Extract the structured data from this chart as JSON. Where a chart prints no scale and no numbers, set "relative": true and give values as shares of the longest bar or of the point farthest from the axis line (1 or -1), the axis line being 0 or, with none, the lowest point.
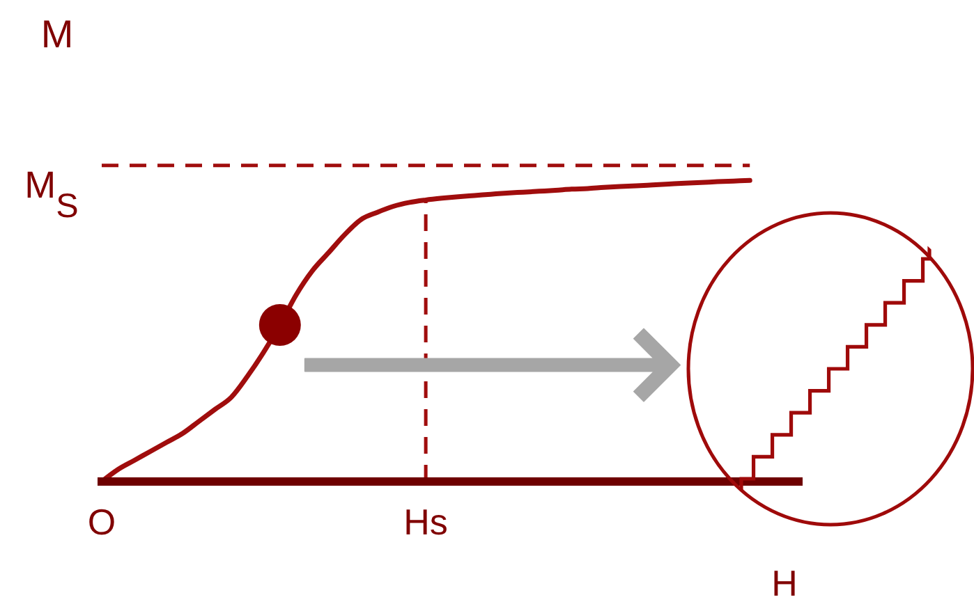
{
  "chart_data": {
    "type": "line",
    "relative": true,
    "xlabel": "H",
    "ylabel": "M",
    "categories": [
      "O",
      null,
      null,
      null,
      null,
      null,
      null,
      null,
      null,
      null,
      null,
      null,
      null,
      null,
      null,
      null,
      null,
      null,
      null,
      null,
      "Hs",
      null,
      null,
      null,
      null,
      null,
      null,
      null,
      null,
      null,
      null,
      null,
      null,
      null,
      null,
      null,
      null,
      null,
      null,
      null,
      null,
      null,
      null,
      null
    ],
    "series": [
      {
        "color": "#a00d0d",
        "values": [
          0,
          0.04,
          0.07,
          0.1,
          0.13,
          0.16,
          0.2,
          0.24,
          0.28,
          0.35,
          0.43,
          0.52,
          0.62,
          0.7,
          0.76,
          0.82,
          0.87,
          0.894,
          0.914,
          0.927,
          0.935,
          0.941,
          0.946,
          0.95,
          0.954,
          0.958,
          0.961,
          0.964,
          0.967,
          0.971,
          0.973,
          0.977,
          0.98,
          0.982,
          0.985,
          0.988,
          0.991,
          0.993,
          0.996,
          0.998,
          1,
          null,
          null,
          null
        ]
      },
      {
        "type": "scatter",
        "color": "#8b0000",
        "marker": "circle",
        "values": [
          null,
          null,
          null,
          null,
          null,
          null,
          null,
          null,
          null,
          null,
          null,
          0.52,
          null,
          null,
          null,
          null,
          null,
          null,
          null,
          null,
          null,
          null,
          null,
          null,
          null,
          null,
          null,
          null,
          null,
          null,
          null,
          null,
          null,
          null,
          null,
          null,
          null,
          null,
          null,
          null,
          null,
          null,
          null,
          null
        ]
      }
    ],
    "ref_lines": [
      {
        "axis": "y",
        "value": 1.05,
        "label": "M$_{S}$",
        "color": "#a00d0d",
        "line_style": "dashed"
      },
      {
        "axis": "x",
        "value": "Hs",
        "color": "#a00d0d",
        "line_style": "dashed"
      }
    ]
  }
}
